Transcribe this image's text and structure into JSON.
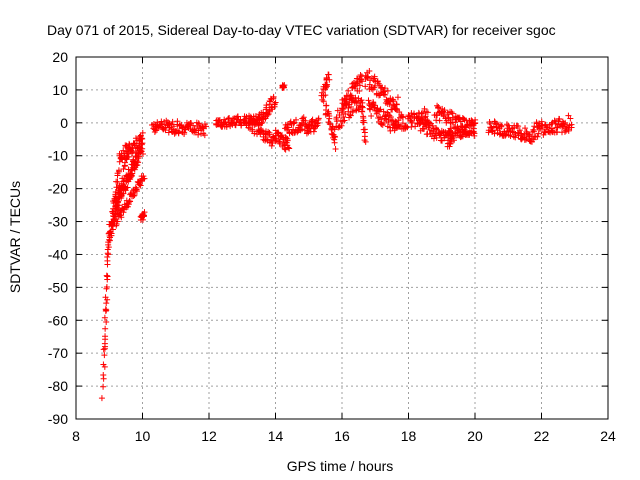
{
  "chart_data": {
    "type": "scatter",
    "title": "Day 071 of 2015, Sidereal Day-to-day VTEC variation (SDTVAR) for receiver sgoc",
    "xlabel": "GPS time / hours",
    "ylabel": "SDTVAR / TECUs",
    "xlim": [
      8,
      24
    ],
    "ylim": [
      -90,
      20
    ],
    "xticks": [
      8,
      10,
      12,
      14,
      16,
      18,
      20,
      22,
      24
    ],
    "yticks": [
      20,
      10,
      0,
      -10,
      -20,
      -30,
      -40,
      -50,
      -60,
      -70,
      -80,
      -90
    ],
    "grid": true,
    "marker": "+",
    "series_color": "#ff0000",
    "segments": [
      {
        "from": [
          8.8,
          -83
        ],
        "to": [
          8.95,
          -40
        ],
        "scatter": 2
      },
      {
        "from": [
          8.85,
          -75
        ],
        "to": [
          9.0,
          -30
        ],
        "scatter": 2
      },
      {
        "from": [
          8.95,
          -40
        ],
        "to": [
          9.3,
          -12
        ],
        "scatter": 2
      },
      {
        "from": [
          9.0,
          -35
        ],
        "to": [
          9.6,
          -8
        ],
        "scatter": 2
      },
      {
        "from": [
          9.05,
          -30
        ],
        "to": [
          10.0,
          -6
        ],
        "scatter": 2
      },
      {
        "from": [
          9.1,
          -25
        ],
        "to": [
          10.0,
          -8
        ],
        "scatter": 2
      },
      {
        "from": [
          9.2,
          -30
        ],
        "to": [
          10.05,
          -16
        ],
        "scatter": 1.5
      },
      {
        "from": [
          9.3,
          -10
        ],
        "to": [
          10.0,
          -5
        ],
        "scatter": 2
      },
      {
        "from": [
          9.95,
          -29
        ],
        "to": [
          10.05,
          -28
        ],
        "scatter": 1
      },
      {
        "from": [
          10.3,
          -1
        ],
        "to": [
          11.9,
          -2
        ],
        "scatter": 2
      },
      {
        "from": [
          12.2,
          0
        ],
        "to": [
          13.5,
          1
        ],
        "scatter": 1.5
      },
      {
        "from": [
          13.5,
          1
        ],
        "to": [
          14.0,
          7
        ],
        "scatter": 2
      },
      {
        "from": [
          13.2,
          0
        ],
        "to": [
          14.0,
          -6
        ],
        "scatter": 2
      },
      {
        "from": [
          14.0,
          -4
        ],
        "to": [
          14.4,
          -7
        ],
        "scatter": 2
      },
      {
        "from": [
          14.2,
          11
        ],
        "to": [
          14.25,
          11
        ],
        "scatter": 0.5
      },
      {
        "from": [
          14.3,
          -2
        ],
        "to": [
          14.9,
          0
        ],
        "scatter": 2
      },
      {
        "from": [
          14.9,
          -2
        ],
        "to": [
          15.3,
          0
        ],
        "scatter": 2
      },
      {
        "from": [
          15.4,
          7
        ],
        "to": [
          15.6,
          14
        ],
        "scatter": 2
      },
      {
        "from": [
          15.5,
          5
        ],
        "to": [
          15.8,
          -6
        ],
        "scatter": 2
      },
      {
        "from": [
          15.8,
          0
        ],
        "to": [
          16.6,
          8
        ],
        "scatter": 3
      },
      {
        "from": [
          16.0,
          5
        ],
        "to": [
          16.6,
          14
        ],
        "scatter": 2
      },
      {
        "from": [
          16.6,
          4
        ],
        "to": [
          16.7,
          -5
        ],
        "scatter": 1.5
      },
      {
        "from": [
          16.7,
          14
        ],
        "to": [
          17.7,
          5
        ],
        "scatter": 3
      },
      {
        "from": [
          16.8,
          5
        ],
        "to": [
          17.6,
          -1
        ],
        "scatter": 2.5
      },
      {
        "from": [
          17.6,
          0
        ],
        "to": [
          18.6,
          2
        ],
        "scatter": 2.5
      },
      {
        "from": [
          18.3,
          0
        ],
        "to": [
          19.3,
          -6
        ],
        "scatter": 2
      },
      {
        "from": [
          18.8,
          3
        ],
        "to": [
          20.0,
          -2
        ],
        "scatter": 2.5
      },
      {
        "from": [
          19.2,
          -4
        ],
        "to": [
          20.0,
          -1
        ],
        "scatter": 2
      },
      {
        "from": [
          20.4,
          -1
        ],
        "to": [
          21.8,
          -4
        ],
        "scatter": 2
      },
      {
        "from": [
          21.8,
          -2
        ],
        "to": [
          22.9,
          0
        ],
        "scatter": 2.5
      }
    ]
  }
}
